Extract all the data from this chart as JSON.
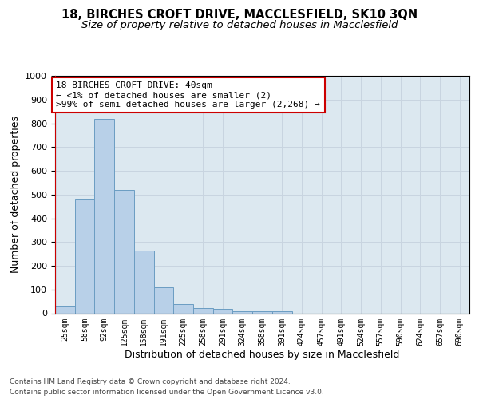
{
  "title": "18, BIRCHES CROFT DRIVE, MACCLESFIELD, SK10 3QN",
  "subtitle": "Size of property relative to detached houses in Macclesfield",
  "xlabel": "Distribution of detached houses by size in Macclesfield",
  "ylabel": "Number of detached properties",
  "footer_line1": "Contains HM Land Registry data © Crown copyright and database right 2024.",
  "footer_line2": "Contains public sector information licensed under the Open Government Licence v3.0.",
  "bin_labels": [
    "25sqm",
    "58sqm",
    "92sqm",
    "125sqm",
    "158sqm",
    "191sqm",
    "225sqm",
    "258sqm",
    "291sqm",
    "324sqm",
    "358sqm",
    "391sqm",
    "424sqm",
    "457sqm",
    "491sqm",
    "524sqm",
    "557sqm",
    "590sqm",
    "624sqm",
    "657sqm",
    "690sqm"
  ],
  "bar_values": [
    30,
    480,
    820,
    520,
    265,
    110,
    40,
    22,
    20,
    10,
    10,
    10,
    0,
    0,
    0,
    0,
    0,
    0,
    0,
    0,
    0
  ],
  "bar_color": "#b8d0e8",
  "bar_edge_color": "#6b9dc2",
  "property_line_color": "#cc0000",
  "annotation_text": "18 BIRCHES CROFT DRIVE: 40sqm\n← <1% of detached houses are smaller (2)\n>99% of semi-detached houses are larger (2,268) →",
  "annotation_box_edge_color": "#cc0000",
  "ylim_max": 1000,
  "yticks": [
    0,
    100,
    200,
    300,
    400,
    500,
    600,
    700,
    800,
    900,
    1000
  ],
  "grid_color": "#c8d4e0",
  "bg_color": "#dce8f0",
  "title_fontsize": 10.5,
  "subtitle_fontsize": 9.5,
  "ylabel_fontsize": 9,
  "xlabel_fontsize": 9,
  "tick_fontsize": 8,
  "xtick_fontsize": 7,
  "annotation_fontsize": 8,
  "footer_fontsize": 6.5
}
